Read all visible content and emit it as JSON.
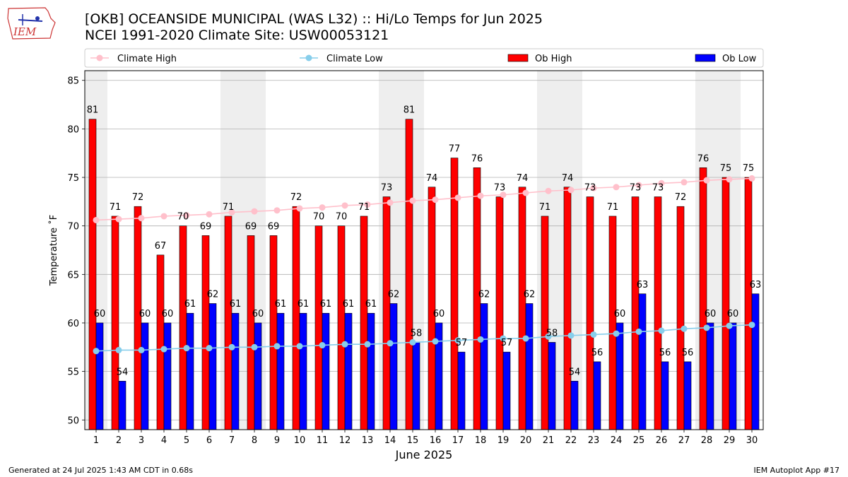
{
  "header": {
    "title_line1": "[OKB] OCEANSIDE MUNICIPAL (WAS L32) :: Hi/Lo Temps for Jun 2025",
    "title_line2": "NCEI 1991-2020 Climate Site: USW00053121",
    "logo_text": "IEM"
  },
  "footer": {
    "generated": "Generated at 24 Jul 2025 1:43 AM CDT in 0.68s",
    "app": "IEM Autoplot App #17"
  },
  "colors": {
    "ob_high": "#ff0000",
    "ob_low": "#0000ff",
    "climate_high": "#ffc0cb",
    "climate_low": "#87ceeb",
    "weekend_shade": "#eeeeee",
    "grid": "#b0b0b0",
    "logo": "#cc3333"
  },
  "chart_data": {
    "type": "bar",
    "xlabel": "June 2025",
    "ylabel": "Temperature ˚F",
    "ylim": [
      49,
      86
    ],
    "yticks": [
      50,
      55,
      60,
      65,
      70,
      75,
      80,
      85
    ],
    "grid": true,
    "legend_placement": "top",
    "categories": [
      "1",
      "2",
      "3",
      "4",
      "5",
      "6",
      "7",
      "8",
      "9",
      "10",
      "11",
      "12",
      "13",
      "14",
      "15",
      "16",
      "17",
      "18",
      "19",
      "20",
      "21",
      "22",
      "23",
      "24",
      "25",
      "26",
      "27",
      "28",
      "29",
      "30"
    ],
    "shaded_days": [
      1,
      7,
      8,
      14,
      15,
      21,
      22,
      28,
      29
    ],
    "series": [
      {
        "name": "Ob High",
        "kind": "bar",
        "values": [
          81,
          71,
          72,
          67,
          70,
          69,
          71,
          69,
          69,
          72,
          70,
          70,
          71,
          73,
          81,
          74,
          77,
          76,
          73,
          74,
          71,
          74,
          73,
          71,
          73,
          73,
          72,
          76,
          75,
          75
        ]
      },
      {
        "name": "Ob Low",
        "kind": "bar",
        "values": [
          60,
          54,
          60,
          60,
          61,
          62,
          61,
          60,
          61,
          61,
          61,
          61,
          61,
          62,
          58,
          60,
          57,
          62,
          57,
          62,
          58,
          54,
          56,
          60,
          63,
          56,
          56,
          60,
          60,
          63
        ]
      },
      {
        "name": "Climate High",
        "kind": "line",
        "values": [
          70.6,
          70.7,
          70.8,
          71.0,
          71.1,
          71.2,
          71.4,
          71.5,
          71.6,
          71.8,
          71.9,
          72.1,
          72.2,
          72.4,
          72.6,
          72.7,
          72.9,
          73.1,
          73.2,
          73.4,
          73.6,
          73.7,
          73.9,
          74.0,
          74.2,
          74.4,
          74.5,
          74.7,
          74.8,
          74.9
        ]
      },
      {
        "name": "Climate Low",
        "kind": "line",
        "values": [
          57.1,
          57.2,
          57.2,
          57.3,
          57.4,
          57.4,
          57.5,
          57.5,
          57.6,
          57.6,
          57.7,
          57.8,
          57.8,
          57.9,
          58.0,
          58.1,
          58.2,
          58.3,
          58.4,
          58.4,
          58.6,
          58.7,
          58.8,
          58.9,
          59.1,
          59.2,
          59.4,
          59.5,
          59.7,
          59.8
        ]
      }
    ]
  }
}
